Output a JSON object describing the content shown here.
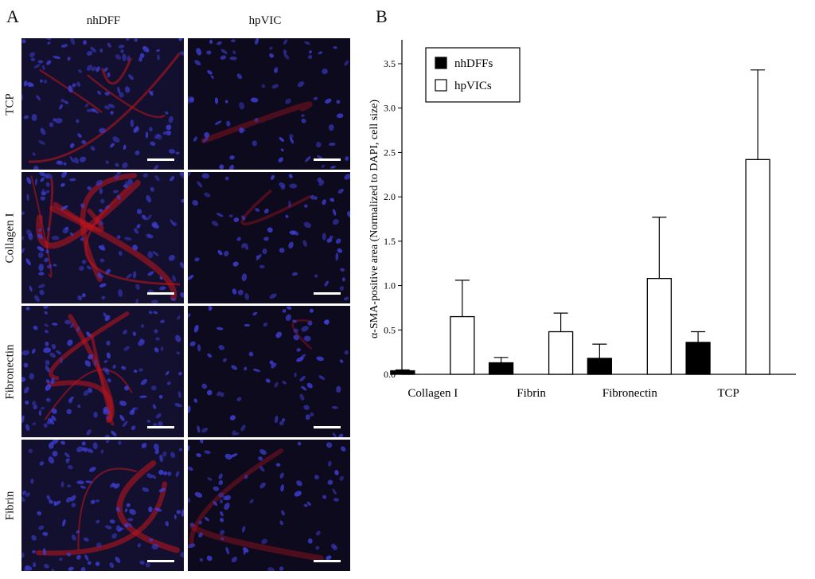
{
  "panels": {
    "left_letter": "A",
    "right_letter": "B"
  },
  "micrographs": {
    "columns": [
      "nhDFF",
      "hpVIC"
    ],
    "rows": [
      "TCP",
      "Collagen I",
      "Fibronectin",
      "Fibrin"
    ]
  },
  "colors": {
    "background": "#0b0718",
    "nuclei": "#3e3fd8",
    "actin": "#c0141e",
    "scale_bar": "#ffffff",
    "bar_fill_nhDFF": "#000000",
    "bar_fill_hpVIC": "#ffffff"
  },
  "chart_data": {
    "type": "bar",
    "title": "",
    "xlabel": "",
    "ylabel": "α-SMA-positive area (Normalized to DAPI, cell size)",
    "categories": [
      "Collagen I",
      "Fibrin",
      "Fibronectin",
      "TCP"
    ],
    "series": [
      {
        "name": "nhDFFs",
        "fill": "#000000",
        "values": [
          0.04,
          0.13,
          0.18,
          0.36
        ],
        "error": [
          0.01,
          0.06,
          0.16,
          0.12
        ]
      },
      {
        "name": "hpVICs",
        "fill": "#ffffff",
        "values": [
          0.65,
          0.48,
          1.08,
          2.42
        ],
        "error": [
          0.41,
          0.21,
          0.69,
          1.01
        ]
      }
    ],
    "ylim": [
      0,
      3.5
    ],
    "yticks": [
      "0.0",
      "0.5",
      "1.0",
      "1.5",
      "2.0",
      "2.5",
      "3.0",
      "3.5"
    ],
    "error_bars": "upper",
    "legend_position": "top-left",
    "grid": false
  }
}
